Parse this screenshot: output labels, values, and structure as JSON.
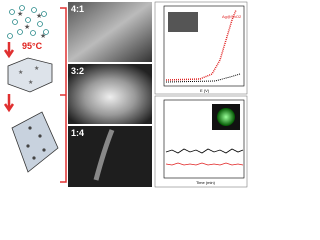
{
  "figure": {
    "temperature": "95°C",
    "ratios": [
      "4:1",
      "3:2",
      "1:4"
    ],
    "top_plot": {
      "legend": "Ag@SnO2",
      "x_label": "E (V)"
    },
    "bottom_plot": {
      "x_label": "Time (min)"
    }
  }
}
